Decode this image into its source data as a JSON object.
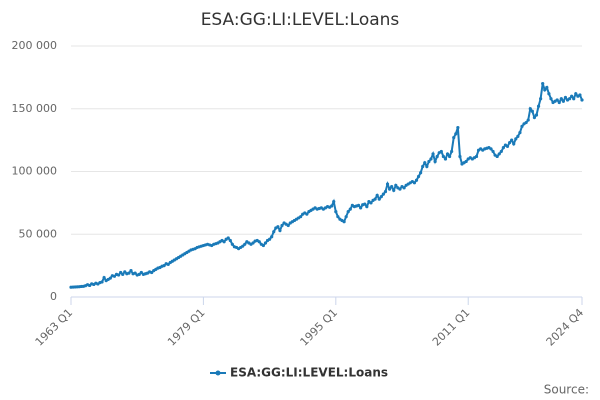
{
  "chart_data": {
    "type": "line",
    "title": "ESA:GG:LI:LEVEL:Loans",
    "source": "Source:",
    "categories": [
      "1963 Q1",
      null,
      null,
      null,
      null,
      null,
      null,
      null,
      null,
      null,
      null,
      null,
      null,
      null,
      null,
      null,
      null,
      null,
      null,
      null,
      null,
      null,
      null,
      null,
      null,
      null,
      null,
      null,
      null,
      null,
      null,
      null,
      null,
      null,
      null,
      null,
      null,
      null,
      null,
      null,
      null,
      null,
      null,
      null,
      null,
      null,
      null,
      null,
      null,
      null,
      null,
      null,
      null,
      null,
      null,
      null,
      null,
      null,
      null,
      null,
      null,
      null,
      null,
      null,
      "1979 Q1",
      null,
      null,
      null,
      null,
      null,
      null,
      null,
      null,
      null,
      null,
      null,
      null,
      null,
      null,
      null,
      null,
      null,
      null,
      null,
      null,
      null,
      null,
      null,
      null,
      null,
      null,
      null,
      null,
      null,
      null,
      null,
      null,
      null,
      null,
      null,
      null,
      null,
      null,
      null,
      null,
      null,
      null,
      null,
      null,
      null,
      null,
      null,
      null,
      null,
      null,
      null,
      null,
      null,
      null,
      null,
      null,
      null,
      null,
      null,
      null,
      null,
      null,
      null,
      "1995 Q1",
      null,
      null,
      null,
      null,
      null,
      null,
      null,
      null,
      null,
      null,
      null,
      null,
      null,
      null,
      null,
      null,
      null,
      null,
      null,
      null,
      null,
      null,
      null,
      null,
      null,
      null,
      null,
      null,
      null,
      null,
      null,
      null,
      null,
      null,
      null,
      null,
      null,
      null,
      null,
      null,
      null,
      null,
      null,
      null,
      null,
      null,
      null,
      null,
      null,
      null,
      null,
      null,
      null,
      null,
      null,
      null,
      null,
      null,
      null,
      null,
      null,
      null,
      null,
      "2011 Q1",
      null,
      null,
      null,
      null,
      null,
      null,
      null,
      null,
      null,
      null,
      null,
      null,
      null,
      null,
      null,
      null,
      null,
      null,
      null,
      null,
      null,
      null,
      null,
      null,
      null,
      null,
      null,
      null,
      null,
      null,
      null,
      null,
      null,
      null,
      null,
      null,
      null,
      null,
      null,
      null,
      null,
      null,
      null,
      null,
      null,
      null,
      null,
      null,
      null,
      null,
      null,
      null,
      null,
      null,
      "2024 Q4"
    ],
    "series": [
      {
        "name": "ESA:GG:LI:LEVEL:Loans",
        "color": "#1a7ab8",
        "values": [
          7800,
          7900,
          8000,
          8100,
          8200,
          8400,
          8500,
          9000,
          9800,
          9200,
          10500,
          10000,
          11000,
          10400,
          11500,
          12000,
          15500,
          13000,
          14000,
          15000,
          17000,
          16500,
          18000,
          17500,
          19500,
          18000,
          20000,
          18500,
          19000,
          21000,
          18500,
          19000,
          17500,
          18000,
          19500,
          18000,
          18500,
          19000,
          20000,
          19500,
          21000,
          22000,
          23000,
          23500,
          24500,
          25000,
          26500,
          26000,
          27500,
          28500,
          29500,
          30500,
          31500,
          32500,
          33500,
          34500,
          35500,
          36500,
          37500,
          38000,
          38500,
          39500,
          40000,
          40500,
          41000,
          41500,
          42000,
          41500,
          41000,
          42000,
          42500,
          43000,
          44000,
          45000,
          44000,
          46000,
          47000,
          45000,
          42000,
          40000,
          39500,
          38500,
          39500,
          40500,
          42000,
          44000,
          43000,
          42000,
          43000,
          44500,
          45000,
          44000,
          42000,
          41000,
          43000,
          45000,
          46000,
          48000,
          52000,
          55000,
          56000,
          53000,
          57000,
          59000,
          58000,
          57000,
          59000,
          60000,
          61000,
          62000,
          63000,
          64000,
          66000,
          67000,
          66000,
          68000,
          69000,
          70000,
          71000,
          70000,
          70500,
          71000,
          70000,
          71000,
          72000,
          71500,
          72500,
          76000,
          68000,
          64000,
          62000,
          61000,
          60000,
          64000,
          68000,
          70000,
          73000,
          72000,
          72500,
          73000,
          71000,
          73500,
          74000,
          72000,
          76000,
          75000,
          77000,
          78000,
          81000,
          78000,
          80000,
          82000,
          84000,
          90000,
          86000,
          88000,
          85000,
          89000,
          87000,
          86000,
          88000,
          87000,
          89000,
          90000,
          91000,
          92000,
          91000,
          93000,
          96000,
          99000,
          104000,
          107000,
          104000,
          108000,
          110000,
          114000,
          108000,
          112000,
          115000,
          116000,
          112000,
          110000,
          114000,
          112000,
          116000,
          127000,
          130000,
          135000,
          112000,
          106000,
          107000,
          108000,
          110000,
          111000,
          110000,
          111000,
          112000,
          117000,
          118000,
          117000,
          118000,
          118500,
          119000,
          118000,
          116000,
          113000,
          112000,
          114000,
          116000,
          119000,
          121000,
          120000,
          123000,
          125000,
          122000,
          126000,
          128000,
          131000,
          136000,
          138000,
          139000,
          141000,
          150000,
          148000,
          143000,
          145000,
          152000,
          158000,
          170000,
          165000,
          167000,
          162000,
          158000,
          155000,
          156000,
          157000,
          155000,
          158000,
          156000,
          159000,
          157000,
          158000,
          160000,
          158000,
          162000,
          160000,
          161000,
          157000
        ]
      }
    ],
    "ylim": [
      0,
      200000
    ],
    "yticks": [
      0,
      {
        "value": 50000,
        "label": "50 000"
      },
      {
        "value": 100000,
        "label": "100 000"
      },
      {
        "value": 150000,
        "label": "150 000"
      },
      {
        "value": 200000,
        "label": "200 000"
      }
    ],
    "grid": true,
    "legend": "bottom"
  }
}
